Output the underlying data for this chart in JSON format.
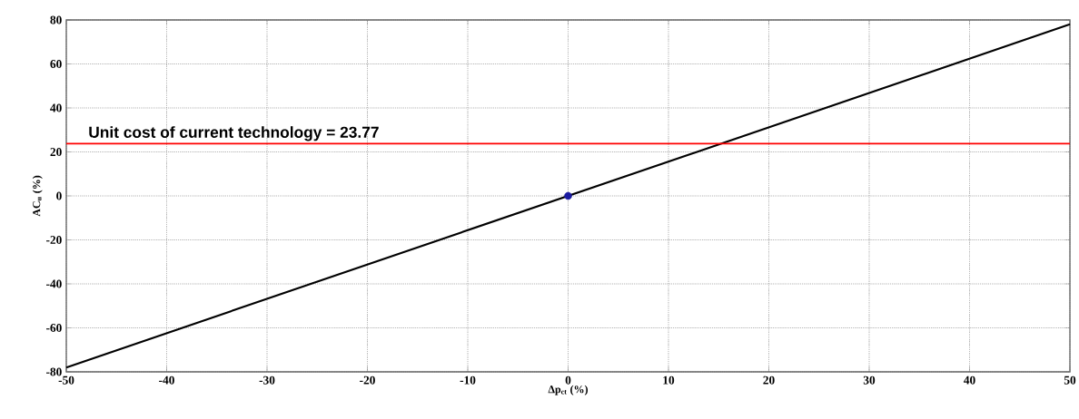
{
  "chart_data": {
    "type": "line",
    "xlabel": "Δp$_{ct}$ (%)",
    "ylabel": "AC$_{u}$ (%)",
    "series": [
      {
        "color": "#000000",
        "x": [
          -50,
          50
        ],
        "values": [
          -78,
          78
        ]
      },
      {
        "type": "scatter",
        "color": "#1a1aa0",
        "x": [
          0
        ],
        "values": [
          0
        ],
        "marker": "circle"
      }
    ],
    "xlim": [
      -50,
      50
    ],
    "ylim": [
      -80,
      80
    ],
    "xticks": [
      -50,
      -40,
      -30,
      -20,
      -10,
      0,
      10,
      20,
      30,
      40,
      50
    ],
    "yticks": [
      -80,
      -60,
      -40,
      -20,
      0,
      20,
      40,
      60,
      80
    ],
    "grid": true,
    "ref_lines": [
      {
        "axis": "y",
        "value": 23.77,
        "label": "Unit cost of current technology = 23.77",
        "color": "#ff0000"
      }
    ]
  }
}
